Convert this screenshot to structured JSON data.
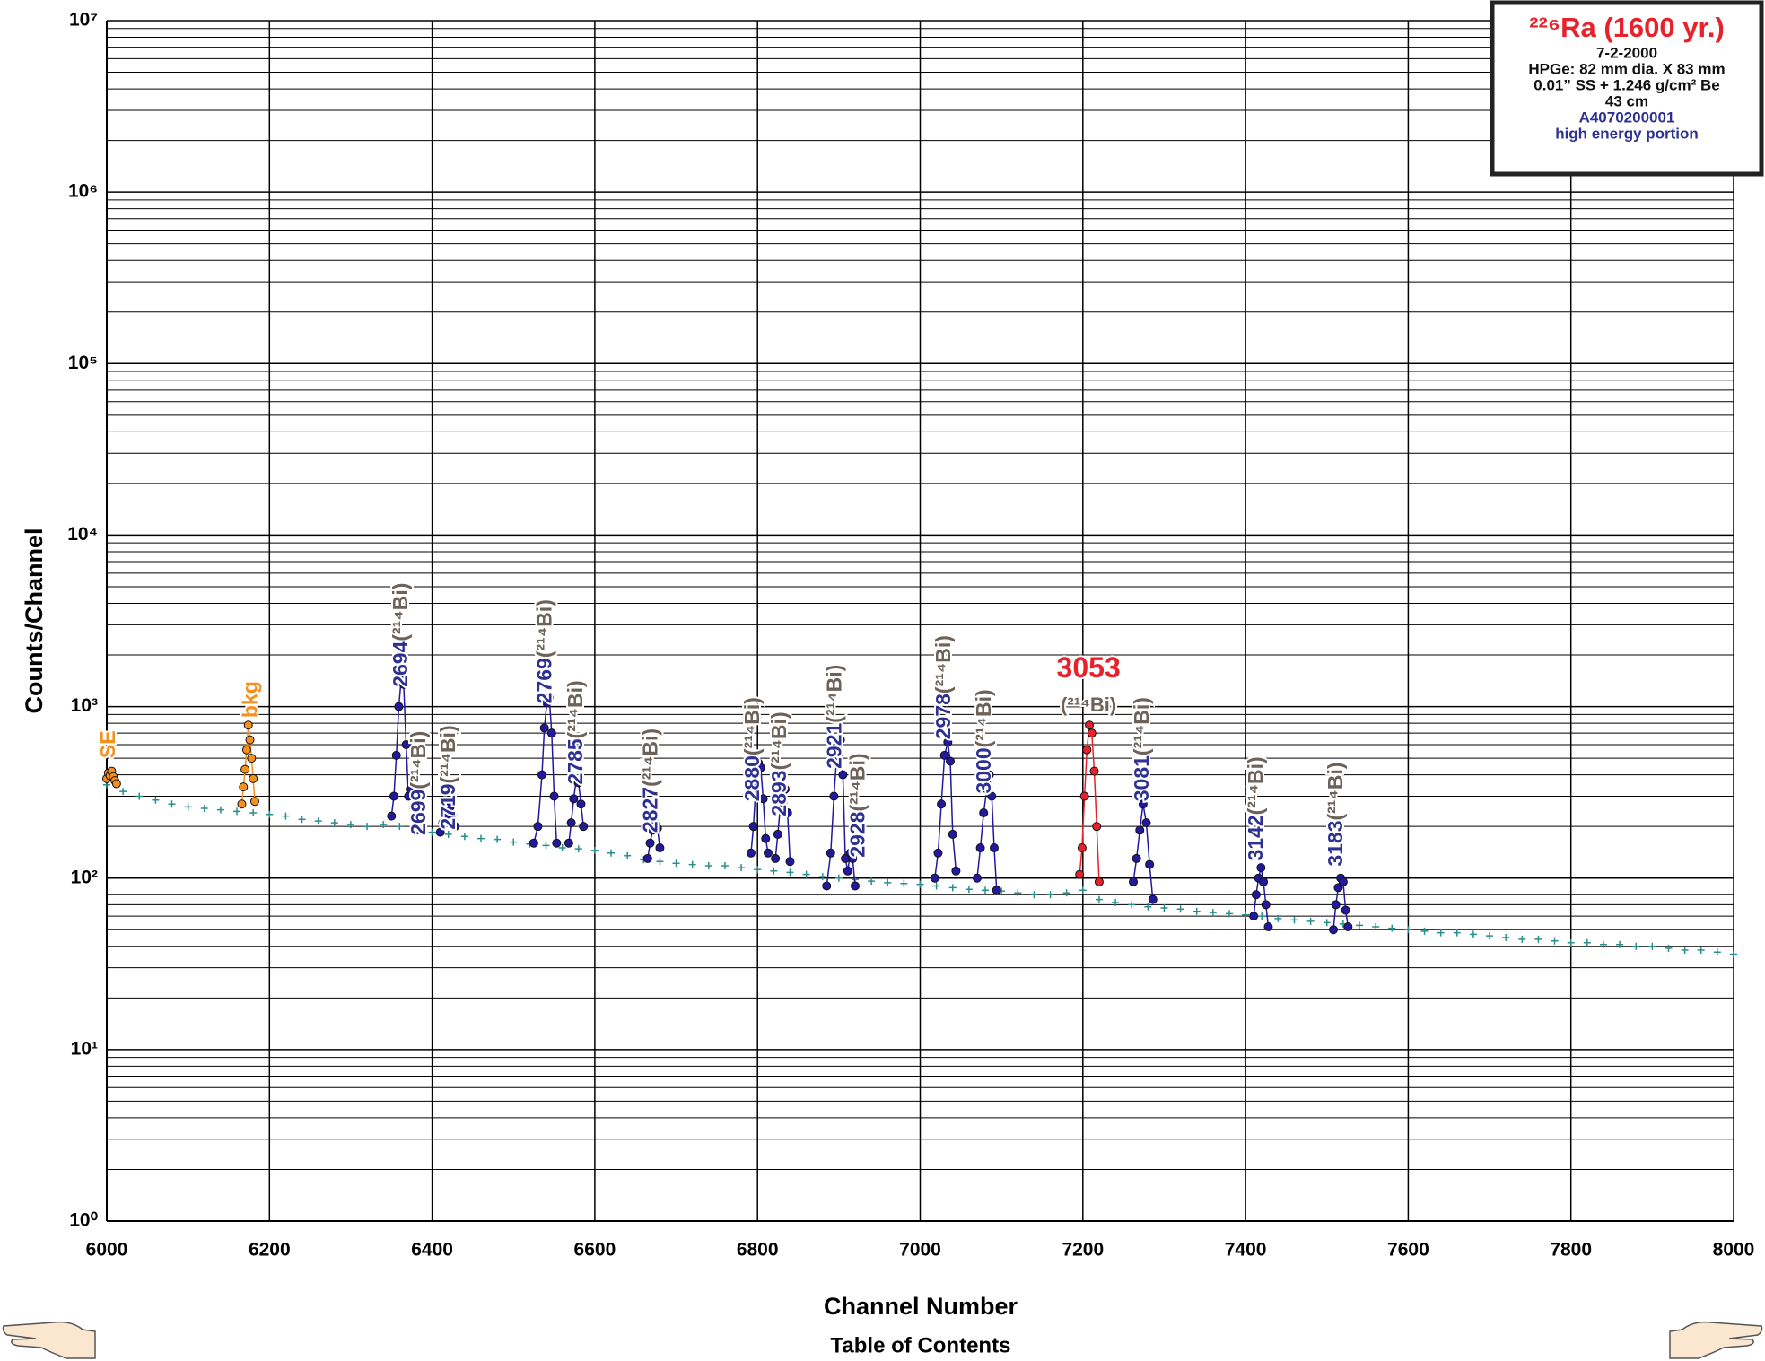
{
  "chart_data": {
    "type": "scatter",
    "x_label": "Channel Number",
    "y_label": "Counts/Channel",
    "log_y": true,
    "grid": true,
    "xlim": [
      6000,
      8000
    ],
    "xticks": [
      6000,
      6200,
      6400,
      6600,
      6800,
      7000,
      7200,
      7400,
      7600,
      7800,
      8000
    ],
    "ylim": [
      1,
      10000000
    ],
    "yticks": [
      {
        "value": 1,
        "label": "10⁰"
      },
      {
        "value": 10,
        "label": "10¹"
      },
      {
        "value": 100,
        "label": "10²"
      },
      {
        "value": 1000,
        "label": "10³"
      },
      {
        "value": 10000,
        "label": "10⁴"
      },
      {
        "value": 100000,
        "label": "10⁵"
      },
      {
        "value": 1000000,
        "label": "10⁶"
      },
      {
        "value": 10000000,
        "label": "10⁷"
      }
    ],
    "series": [
      {
        "color": "#2a8f8c",
        "marker": "plus",
        "line": false,
        "x": [
          6000,
          6020,
          6040,
          6060,
          6080,
          6100,
          6120,
          6140,
          6160,
          6180,
          6200,
          6220,
          6240,
          6260,
          6280,
          6300,
          6320,
          6340,
          6360,
          6380,
          6400,
          6420,
          6440,
          6460,
          6480,
          6500,
          6520,
          6540,
          6560,
          6580,
          6600,
          6620,
          6640,
          6660,
          6680,
          6700,
          6720,
          6740,
          6760,
          6780,
          6800,
          6820,
          6840,
          6860,
          6880,
          6900,
          6920,
          6940,
          6960,
          6980,
          7000,
          7020,
          7040,
          7060,
          7080,
          7100,
          7120,
          7140,
          7160,
          7180,
          7200,
          7220,
          7240,
          7260,
          7280,
          7300,
          7320,
          7340,
          7360,
          7380,
          7400,
          7420,
          7440,
          7460,
          7480,
          7500,
          7520,
          7540,
          7560,
          7580,
          7600,
          7620,
          7640,
          7660,
          7680,
          7700,
          7720,
          7740,
          7760,
          7780,
          7800,
          7820,
          7840,
          7860,
          7880,
          7900,
          7920,
          7940,
          7960,
          7980,
          8000
        ],
        "values": [
          350,
          320,
          300,
          285,
          270,
          260,
          255,
          250,
          245,
          240,
          235,
          230,
          220,
          215,
          210,
          205,
          200,
          205,
          200,
          190,
          185,
          180,
          175,
          170,
          168,
          162,
          158,
          155,
          150,
          148,
          145,
          140,
          135,
          128,
          125,
          122,
          120,
          118,
          118,
          115,
          112,
          110,
          108,
          105,
          102,
          100,
          98,
          96,
          94,
          93,
          92,
          90,
          88,
          86,
          85,
          84,
          82,
          80,
          80,
          82,
          85,
          75,
          72,
          70,
          68,
          67,
          66,
          64,
          63,
          62,
          61,
          60,
          58,
          57,
          56,
          55,
          54,
          53,
          52,
          51,
          50,
          49,
          48,
          48,
          47,
          46,
          45,
          44,
          44,
          43,
          42,
          42,
          41,
          41,
          40,
          40,
          39,
          38,
          38,
          37,
          36
        ]
      },
      {
        "color": "#f5901e",
        "marker": "circle",
        "line": true,
        "x": [
          6000,
          6002,
          6004,
          6006,
          6008,
          6010,
          6012
        ],
        "values": [
          380,
          410,
          395,
          420,
          390,
          370,
          355
        ]
      },
      {
        "color": "#f5901e",
        "marker": "circle",
        "line": true,
        "x": [
          6166,
          6168,
          6170,
          6172,
          6174,
          6176,
          6178,
          6180,
          6182
        ],
        "values": [
          270,
          340,
          430,
          560,
          780,
          640,
          500,
          380,
          280
        ]
      },
      {
        "color": "#2319a0",
        "marker": "circle",
        "line": true,
        "x": [
          6350,
          6353,
          6356,
          6359,
          6362,
          6365,
          6368,
          6371,
          6374,
          6377,
          6380
        ],
        "values": [
          230,
          300,
          520,
          1000,
          1450,
          1350,
          600,
          300,
          330,
          260,
          190
        ]
      },
      {
        "color": "#2319a0",
        "marker": "circle",
        "line": true,
        "x": [
          6410,
          6413,
          6416,
          6419,
          6422,
          6425,
          6428
        ],
        "values": [
          185,
          210,
          230,
          250,
          260,
          235,
          200
        ]
      },
      {
        "color": "#2319a0",
        "marker": "circle",
        "line": true,
        "x": [
          6525,
          6530,
          6535,
          6538,
          6541,
          6544,
          6547,
          6550,
          6553
        ],
        "values": [
          160,
          200,
          400,
          750,
          1050,
          1130,
          700,
          300,
          160
        ]
      },
      {
        "color": "#2319a0",
        "marker": "circle",
        "line": true,
        "x": [
          6568,
          6571,
          6574,
          6577,
          6580,
          6583,
          6586
        ],
        "values": [
          160,
          210,
          290,
          370,
          360,
          270,
          200
        ]
      },
      {
        "color": "#2319a0",
        "marker": "circle",
        "line": true,
        "x": [
          6665,
          6668,
          6671,
          6674,
          6677,
          6680
        ],
        "values": [
          130,
          160,
          190,
          210,
          195,
          150
        ]
      },
      {
        "color": "#2319a0",
        "marker": "circle",
        "line": true,
        "x": [
          6792,
          6795,
          6798,
          6801,
          6804,
          6807,
          6810,
          6813
        ],
        "values": [
          140,
          200,
          350,
          470,
          440,
          290,
          170,
          140
        ]
      },
      {
        "color": "#2319a0",
        "marker": "circle",
        "line": true,
        "x": [
          6822,
          6825,
          6828,
          6831,
          6834,
          6837,
          6840
        ],
        "values": [
          130,
          180,
          260,
          320,
          330,
          240,
          125
        ]
      },
      {
        "color": "#2319a0",
        "marker": "circle",
        "line": true,
        "x": [
          6885,
          6890,
          6894,
          6898,
          6902,
          6905,
          6908,
          6911,
          6914,
          6917,
          6920
        ],
        "values": [
          90,
          140,
          300,
          560,
          640,
          400,
          130,
          110,
          140,
          130,
          90
        ]
      },
      {
        "color": "#2319a0",
        "marker": "circle",
        "line": true,
        "x": [
          7018,
          7022,
          7026,
          7030,
          7034,
          7037,
          7040,
          7044
        ],
        "values": [
          100,
          140,
          270,
          520,
          620,
          480,
          180,
          110
        ]
      },
      {
        "color": "#2319a0",
        "marker": "circle",
        "line": true,
        "x": [
          7070,
          7074,
          7078,
          7082,
          7085,
          7088,
          7091,
          7094
        ],
        "values": [
          100,
          150,
          240,
          330,
          400,
          300,
          150,
          85
        ]
      },
      {
        "color": "#e8222a",
        "marker": "circle",
        "line": true,
        "x": [
          7196,
          7199,
          7202,
          7205,
          7208,
          7211,
          7214,
          7217,
          7220
        ],
        "values": [
          105,
          150,
          300,
          560,
          780,
          700,
          420,
          200,
          95
        ]
      },
      {
        "color": "#2319a0",
        "marker": "circle",
        "line": true,
        "x": [
          7262,
          7266,
          7270,
          7274,
          7278,
          7282,
          7286
        ],
        "values": [
          95,
          130,
          190,
          270,
          210,
          120,
          75
        ]
      },
      {
        "color": "#2319a0",
        "marker": "circle",
        "line": true,
        "x": [
          7410,
          7413,
          7416,
          7419,
          7422,
          7425,
          7428
        ],
        "values": [
          60,
          80,
          100,
          115,
          95,
          70,
          52
        ]
      },
      {
        "color": "#2319a0",
        "marker": "circle",
        "line": true,
        "x": [
          7508,
          7511,
          7514,
          7517,
          7520,
          7523,
          7526
        ],
        "values": [
          50,
          70,
          88,
          100,
          95,
          65,
          52
        ]
      }
    ],
    "annotations": [
      {
        "text": "SE",
        "x": 6001,
        "y": 500,
        "color": "#f5901e",
        "rotated": true
      },
      {
        "text": "bkg",
        "x": 6176,
        "y": 860,
        "color": "#f5901e",
        "rotated": true
      },
      {
        "text": "2694",
        "isotope": "(²¹⁴Bi)",
        "x": 6361,
        "y": 1300,
        "color": "#2e3192",
        "rotated": true
      },
      {
        "text": "2699",
        "isotope": "(²¹⁴Bi)",
        "x": 6383,
        "y": 178,
        "color": "#2e3192",
        "rotated": true
      },
      {
        "text": "2719",
        "isotope": "(²¹⁴Bi)",
        "x": 6419,
        "y": 192,
        "color": "#2e3192",
        "rotated": true
      },
      {
        "text": "2769",
        "isotope": "(²¹⁴Bi)",
        "x": 6538,
        "y": 1040,
        "color": "#2e3192",
        "rotated": true
      },
      {
        "text": "2785",
        "isotope": "(²¹⁴Bi)",
        "x": 6576,
        "y": 351,
        "color": "#2e3192",
        "rotated": true
      },
      {
        "text": "2827",
        "isotope": "(²¹⁴Bi)",
        "x": 6668,
        "y": 184,
        "color": "#2e3192",
        "rotated": true
      },
      {
        "text": "2880",
        "isotope": "(²¹⁴Bi)",
        "x": 6793,
        "y": 280,
        "color": "#2e3192",
        "rotated": true
      },
      {
        "text": "2893",
        "isotope": "(²¹⁴Bi)",
        "x": 6826,
        "y": 230,
        "color": "#2e3192",
        "rotated": true
      },
      {
        "text": "2921",
        "isotope": "(²¹⁴Bi)",
        "x": 6894,
        "y": 434,
        "color": "#2e3192",
        "rotated": true
      },
      {
        "text": "2928",
        "isotope": "(²¹⁴Bi)",
        "x": 6923,
        "y": 132,
        "color": "#2e3192",
        "rotated": true
      },
      {
        "text": "2978",
        "isotope": "(²¹⁴Bi)",
        "x": 7028,
        "y": 643,
        "color": "#2e3192",
        "rotated": true
      },
      {
        "text": "3000",
        "isotope": "(²¹⁴Bi)",
        "x": 7078,
        "y": 311,
        "color": "#2e3192",
        "rotated": true
      },
      {
        "text": "3053",
        "isotope": "(²¹⁴Bi)",
        "x": 7207,
        "y": 1480,
        "color": "#e8222a",
        "rotated": false
      },
      {
        "text": "3081",
        "isotope": "(²¹⁴Bi)",
        "x": 7272,
        "y": 280,
        "color": "#2e3192",
        "rotated": true
      },
      {
        "text": "3142",
        "isotope": "(²¹⁴Bi)",
        "x": 7412,
        "y": 126,
        "color": "#2e3192",
        "rotated": true
      },
      {
        "text": "3183",
        "isotope": "(²¹⁴Bi)",
        "x": 7510,
        "y": 117,
        "color": "#2e3192",
        "rotated": true
      }
    ],
    "info_box": {
      "title": "²²⁶Ra (1600 yr.)",
      "lines": [
        "7-2-2000",
        "HPGe: 82 mm dia. X 83 mm",
        "0.01” SS + 1.246 g/cm² Be",
        "43 cm"
      ],
      "source_lines": [
        "A4070200001",
        "high energy portion"
      ]
    }
  },
  "navigation": {
    "link": "Table of Contents"
  }
}
